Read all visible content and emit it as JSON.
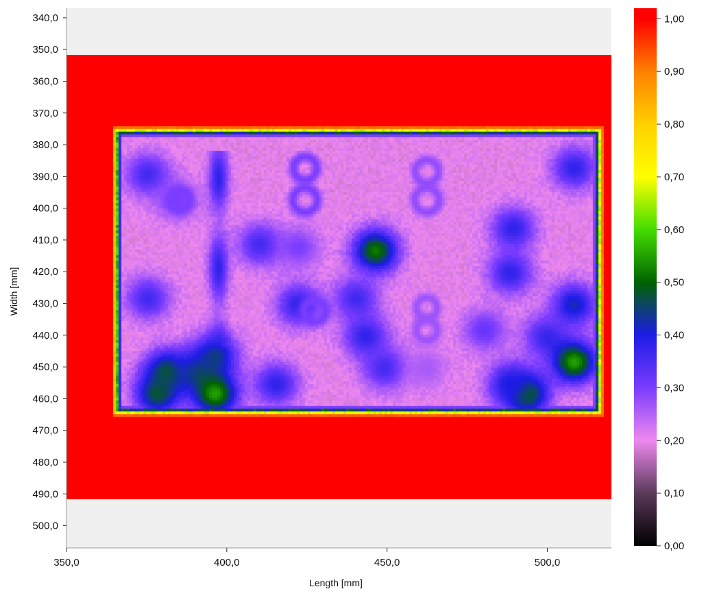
{
  "chart_data": {
    "type": "heatmap",
    "xlabel": "Length [mm]",
    "ylabel": "Width [mm]",
    "x_range": [
      350.0,
      520.0
    ],
    "y_range": [
      337.0,
      507.0
    ],
    "y_inverted": true,
    "x_ticks": [
      "350,0",
      "400,0",
      "450,0",
      "500,0"
    ],
    "y_ticks": [
      "340,0",
      "350,0",
      "360,0",
      "370,0",
      "380,0",
      "390,0",
      "400,0",
      "410,0",
      "420,0",
      "430,0",
      "440,0",
      "450,0",
      "460,0",
      "470,0",
      "480,0",
      "490,0",
      "500,0"
    ],
    "data_extent": {
      "x": [
        350.0,
        520.0
      ],
      "y": [
        351.5,
        491.5
      ]
    },
    "plate_region": {
      "x": [
        366,
        515
      ],
      "y": [
        376,
        463
      ]
    },
    "background_value": 1.0,
    "plate_base_value": 0.2,
    "colorbar": {
      "min": 0.0,
      "max": 1.02,
      "ticks": [
        "0,00",
        "0,10",
        "0,20",
        "0,30",
        "0,40",
        "0,50",
        "0,60",
        "0,70",
        "0,80",
        "0,90",
        "1,00"
      ],
      "colors": [
        {
          "value": 0.0,
          "color": "#000000"
        },
        {
          "value": 0.1,
          "color": "#5a3a5a"
        },
        {
          "value": 0.2,
          "color": "#ee88ee"
        },
        {
          "value": 0.3,
          "color": "#7a3cff"
        },
        {
          "value": 0.4,
          "color": "#1c1ce6"
        },
        {
          "value": 0.5,
          "color": "#006400"
        },
        {
          "value": 0.6,
          "color": "#44dd00"
        },
        {
          "value": 0.7,
          "color": "#ffff00"
        },
        {
          "value": 0.8,
          "color": "#ffd000"
        },
        {
          "value": 0.9,
          "color": "#ff8000"
        },
        {
          "value": 1.0,
          "color": "#ff0000"
        }
      ]
    },
    "features": [
      {
        "shape": "blob",
        "x": 446,
        "y": 413,
        "value": 0.52
      },
      {
        "shape": "blob",
        "x": 489,
        "y": 406,
        "value": 0.38
      },
      {
        "shape": "blob",
        "x": 375,
        "y": 389,
        "value": 0.36
      },
      {
        "shape": "blob",
        "x": 375,
        "y": 428,
        "value": 0.36
      },
      {
        "shape": "blob",
        "x": 384,
        "y": 397,
        "value": 0.3
      },
      {
        "shape": "blob",
        "x": 410,
        "y": 411,
        "value": 0.36
      },
      {
        "shape": "blob",
        "x": 422,
        "y": 430,
        "value": 0.38
      },
      {
        "shape": "blob",
        "x": 440,
        "y": 428,
        "value": 0.36
      },
      {
        "shape": "blob",
        "x": 443,
        "y": 440,
        "value": 0.38
      },
      {
        "shape": "blob",
        "x": 449,
        "y": 450,
        "value": 0.36
      },
      {
        "shape": "blob",
        "x": 488,
        "y": 420,
        "value": 0.38
      },
      {
        "shape": "blob",
        "x": 480,
        "y": 438,
        "value": 0.32
      },
      {
        "shape": "blob",
        "x": 499,
        "y": 440,
        "value": 0.36
      },
      {
        "shape": "blob",
        "x": 508,
        "y": 430,
        "value": 0.42
      },
      {
        "shape": "blob",
        "x": 508,
        "y": 448,
        "value": 0.55
      },
      {
        "shape": "blob",
        "x": 508,
        "y": 387,
        "value": 0.38
      },
      {
        "shape": "blob",
        "x": 381,
        "y": 451,
        "value": 0.48
      },
      {
        "shape": "blob",
        "x": 390,
        "y": 451,
        "value": 0.42
      },
      {
        "shape": "blob",
        "x": 396,
        "y": 446,
        "value": 0.44
      },
      {
        "shape": "blob",
        "x": 396,
        "y": 458,
        "value": 0.55
      },
      {
        "shape": "blob",
        "x": 378,
        "y": 458,
        "value": 0.48
      },
      {
        "shape": "blob",
        "x": 415,
        "y": 455,
        "value": 0.38
      },
      {
        "shape": "blob",
        "x": 493,
        "y": 458,
        "value": 0.52
      },
      {
        "shape": "blob",
        "x": 488,
        "y": 455,
        "value": 0.4
      },
      {
        "shape": "blob",
        "x": 422,
        "y": 412,
        "value": 0.3
      },
      {
        "shape": "blob",
        "x": 462,
        "y": 450,
        "value": 0.26
      },
      {
        "shape": "column",
        "x": 397,
        "y_from": 383,
        "y_to": 440,
        "value": 0.38
      },
      {
        "shape": "ring",
        "x": 424,
        "y": 387,
        "r": 3.6,
        "value": 0.3
      },
      {
        "shape": "ring",
        "x": 424,
        "y": 397,
        "r": 3.8,
        "value": 0.3
      },
      {
        "shape": "ring",
        "x": 462,
        "y": 388,
        "r": 3.6,
        "value": 0.28
      },
      {
        "shape": "ring",
        "x": 462,
        "y": 397,
        "r": 3.8,
        "value": 0.28
      },
      {
        "shape": "ring",
        "x": 462,
        "y": 431,
        "r": 3.2,
        "value": 0.27
      },
      {
        "shape": "ring",
        "x": 462,
        "y": 438,
        "r": 3.2,
        "value": 0.27
      },
      {
        "shape": "ring",
        "x": 427,
        "y": 432,
        "r": 3.4,
        "value": 0.3
      },
      {
        "shape": "ring",
        "x": 385,
        "y": 397,
        "r": 3.0,
        "value": 0.3
      }
    ]
  }
}
